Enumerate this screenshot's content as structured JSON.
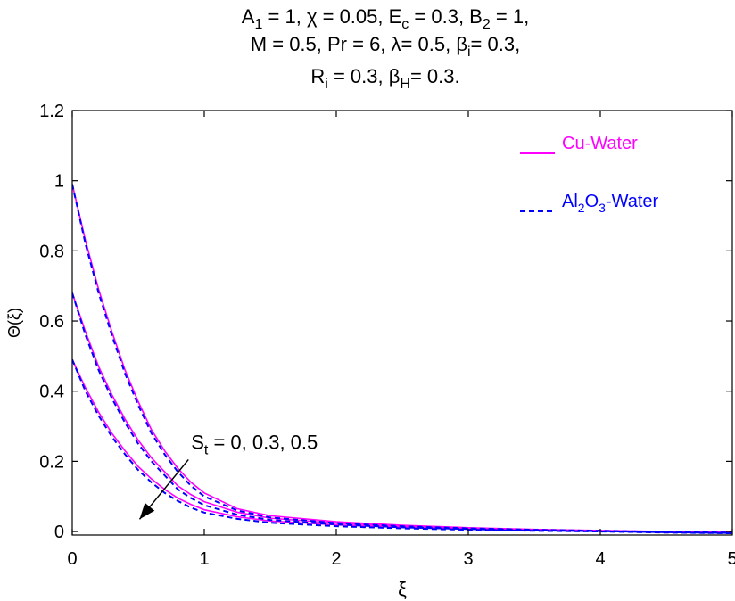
{
  "chart_data": {
    "type": "line",
    "title_lines": [
      [
        {
          "t": "A"
        },
        {
          "t": "1",
          "s": "sub"
        },
        {
          "t": " = 1,  "
        },
        {
          "t": "χ"
        },
        {
          "t": " = 0.05, E"
        },
        {
          "t": "c",
          "s": "sub"
        },
        {
          "t": " = 0.3, B"
        },
        {
          "t": "2",
          "s": "sub"
        },
        {
          "t": " = 1,"
        }
      ],
      [
        {
          "t": "M = 0.5, Pr = 6, "
        },
        {
          "t": "λ"
        },
        {
          "t": "= 0.5, "
        },
        {
          "t": "β"
        },
        {
          "t": "i",
          "s": "sub"
        },
        {
          "t": "= 0.3,"
        }
      ],
      [
        {
          "t": "R"
        },
        {
          "t": "i",
          "s": "sub"
        },
        {
          "t": " = 0.3, "
        },
        {
          "t": "β"
        },
        {
          "t": "H",
          "s": "sub"
        },
        {
          "t": "= 0.3."
        }
      ]
    ],
    "xlabel": "ξ",
    "ylabel": "Θ(ξ)",
    "xlim": [
      0,
      5
    ],
    "ylim": [
      -0.01,
      1.2
    ],
    "xticks": [
      0,
      1,
      2,
      3,
      4,
      5
    ],
    "xtick_labels": [
      "0",
      "1",
      "2",
      "3",
      "4",
      "5"
    ],
    "yticks": [
      0,
      0.2,
      0.4,
      0.6,
      0.8,
      1,
      1.2
    ],
    "ytick_labels": [
      "0",
      "0.2",
      "0.4",
      "0.6",
      "0.8",
      "1",
      "1.2"
    ],
    "grid": false,
    "legend_position": "top-right",
    "legend": [
      {
        "series": "cu",
        "style": "solid",
        "parts": [
          {
            "t": "Cu-Water"
          }
        ]
      },
      {
        "series": "al",
        "style": "dashed",
        "parts": [
          {
            "t": "Al"
          },
          {
            "t": "2",
            "s": "sub"
          },
          {
            "t": "O"
          },
          {
            "t": "3",
            "s": "sub"
          },
          {
            "t": "-Water"
          }
        ]
      }
    ],
    "annotation": {
      "parts": [
        {
          "t": "S"
        },
        {
          "t": "t",
          "s": "sub"
        },
        {
          "t": " = 0, 0.3, 0.5"
        }
      ],
      "arrow_from": [
        0.88,
        0.205
      ],
      "arrow_to": [
        0.51,
        0.035
      ],
      "text_at": [
        0.9,
        0.24
      ]
    },
    "colors": {
      "cu": "#ff00ff",
      "al": "#0000ff",
      "text_cu": "#ff00ff",
      "text_al": "#0000ff"
    },
    "series": [
      {
        "group": "cu",
        "St": 0,
        "x": [
          0,
          0.1,
          0.2,
          0.3,
          0.4,
          0.5,
          0.6,
          0.7,
          0.8,
          0.9,
          1,
          1.25,
          1.5,
          2,
          2.5,
          3,
          3.5,
          4,
          4.5,
          5
        ],
        "y": [
          0.99,
          0.83,
          0.69,
          0.57,
          0.46,
          0.37,
          0.29,
          0.23,
          0.18,
          0.14,
          0.11,
          0.065,
          0.045,
          0.028,
          0.018,
          0.011,
          0.006,
          0.003,
          0.0,
          -0.002
        ]
      },
      {
        "group": "al",
        "St": 0,
        "x": [
          0,
          0.1,
          0.2,
          0.3,
          0.4,
          0.5,
          0.6,
          0.7,
          0.8,
          0.9,
          1,
          1.25,
          1.5,
          2,
          2.5,
          3,
          3.5,
          4,
          4.5,
          5
        ],
        "y": [
          0.99,
          0.82,
          0.68,
          0.56,
          0.45,
          0.36,
          0.28,
          0.22,
          0.17,
          0.13,
          0.1,
          0.06,
          0.04,
          0.024,
          0.015,
          0.009,
          0.005,
          0.002,
          -0.001,
          -0.003
        ]
      },
      {
        "group": "cu",
        "St": 0.3,
        "x": [
          0,
          0.1,
          0.2,
          0.3,
          0.4,
          0.5,
          0.6,
          0.7,
          0.8,
          0.9,
          1,
          1.25,
          1.5,
          2,
          2.5,
          3,
          3.5,
          4,
          4.5,
          5
        ],
        "y": [
          0.68,
          0.57,
          0.47,
          0.39,
          0.32,
          0.26,
          0.21,
          0.17,
          0.13,
          0.105,
          0.085,
          0.055,
          0.038,
          0.024,
          0.015,
          0.009,
          0.005,
          0.002,
          -0.001,
          -0.003
        ]
      },
      {
        "group": "al",
        "St": 0.3,
        "x": [
          0,
          0.1,
          0.2,
          0.3,
          0.4,
          0.5,
          0.6,
          0.7,
          0.8,
          0.9,
          1,
          1.25,
          1.5,
          2,
          2.5,
          3,
          3.5,
          4,
          4.5,
          5
        ],
        "y": [
          0.68,
          0.56,
          0.46,
          0.38,
          0.31,
          0.25,
          0.2,
          0.16,
          0.12,
          0.095,
          0.075,
          0.048,
          0.033,
          0.02,
          0.012,
          0.007,
          0.003,
          0.001,
          -0.002,
          -0.004
        ]
      },
      {
        "group": "cu",
        "St": 0.5,
        "x": [
          0,
          0.1,
          0.2,
          0.3,
          0.4,
          0.5,
          0.6,
          0.7,
          0.8,
          0.9,
          1,
          1.25,
          1.5,
          2,
          2.5,
          3,
          3.5,
          4,
          4.5,
          5
        ],
        "y": [
          0.49,
          0.41,
          0.34,
          0.28,
          0.23,
          0.185,
          0.15,
          0.12,
          0.095,
          0.077,
          0.062,
          0.042,
          0.03,
          0.019,
          0.012,
          0.007,
          0.003,
          0.001,
          -0.002,
          -0.004
        ]
      },
      {
        "group": "al",
        "St": 0.5,
        "x": [
          0,
          0.1,
          0.2,
          0.3,
          0.4,
          0.5,
          0.6,
          0.7,
          0.8,
          0.9,
          1,
          1.25,
          1.5,
          2,
          2.5,
          3,
          3.5,
          4,
          4.5,
          5
        ],
        "y": [
          0.49,
          0.4,
          0.33,
          0.27,
          0.22,
          0.175,
          0.14,
          0.11,
          0.087,
          0.068,
          0.054,
          0.036,
          0.025,
          0.015,
          0.009,
          0.005,
          0.002,
          0.0,
          -0.003,
          -0.005
        ]
      }
    ]
  }
}
